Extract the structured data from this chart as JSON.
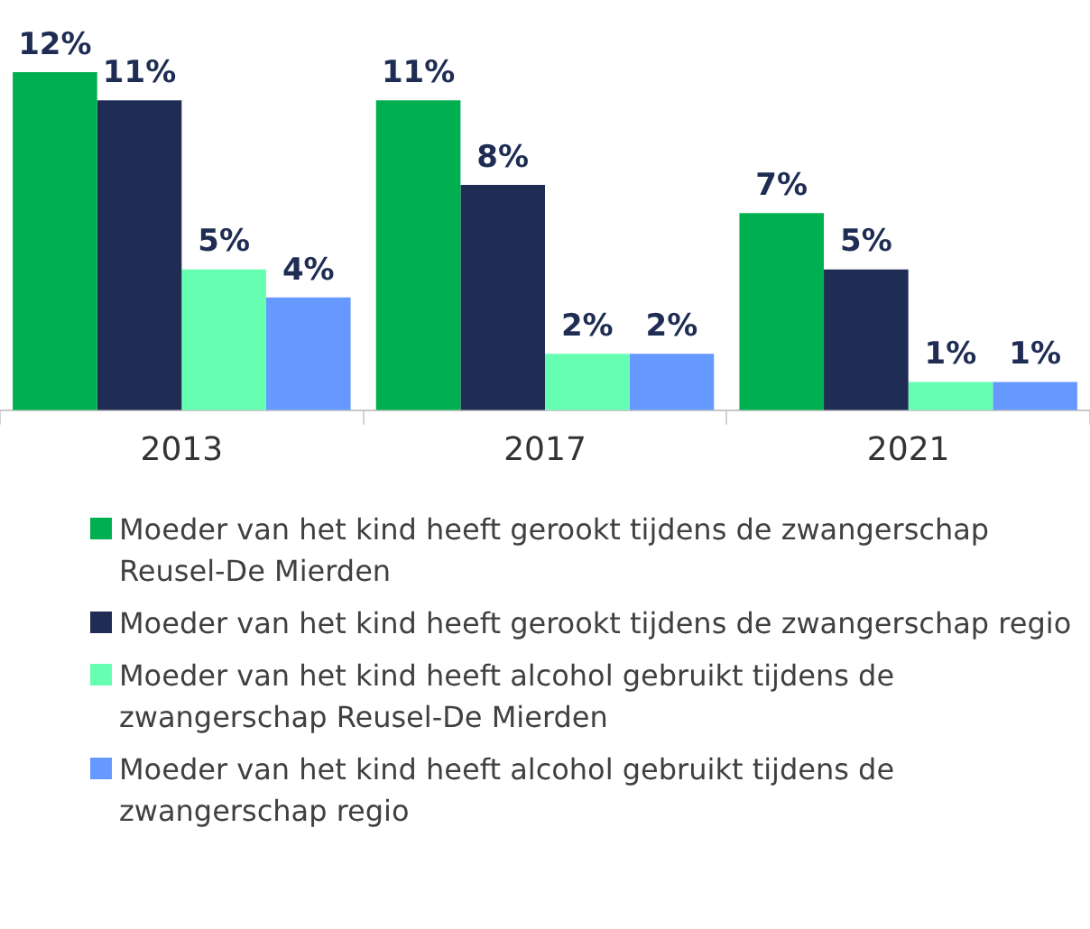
{
  "chart_data": {
    "type": "bar",
    "categories": [
      "2013",
      "2017",
      "2021"
    ],
    "series": [
      {
        "name": "Moeder van het kind heeft gerookt tijdens de zwangerschap Reusel-De Mierden",
        "color": "#00b050",
        "values": [
          12,
          11,
          7
        ],
        "value_labels": [
          "12%",
          "11%",
          "7%"
        ]
      },
      {
        "name": "Moeder van het kind heeft gerookt tijdens de zwangerschap regio",
        "color": "#1f2d54",
        "values": [
          11,
          8,
          5
        ],
        "value_labels": [
          "11%",
          "8%",
          "5%"
        ]
      },
      {
        "name": "Moeder van het kind heeft alcohol gebruikt tijdens de zwangerschap Reusel-De Mierden",
        "color": "#66ffb2",
        "values": [
          5,
          2,
          1
        ],
        "value_labels": [
          "5%",
          "2%",
          "1%"
        ]
      },
      {
        "name": "Moeder van het kind heeft alcohol gebruikt tijdens de zwangerschap regio",
        "color": "#6699ff",
        "values": [
          4,
          2,
          1
        ],
        "value_labels": [
          "4%",
          "2%",
          "1%"
        ]
      }
    ],
    "legend": "bottom",
    "grid": false
  }
}
